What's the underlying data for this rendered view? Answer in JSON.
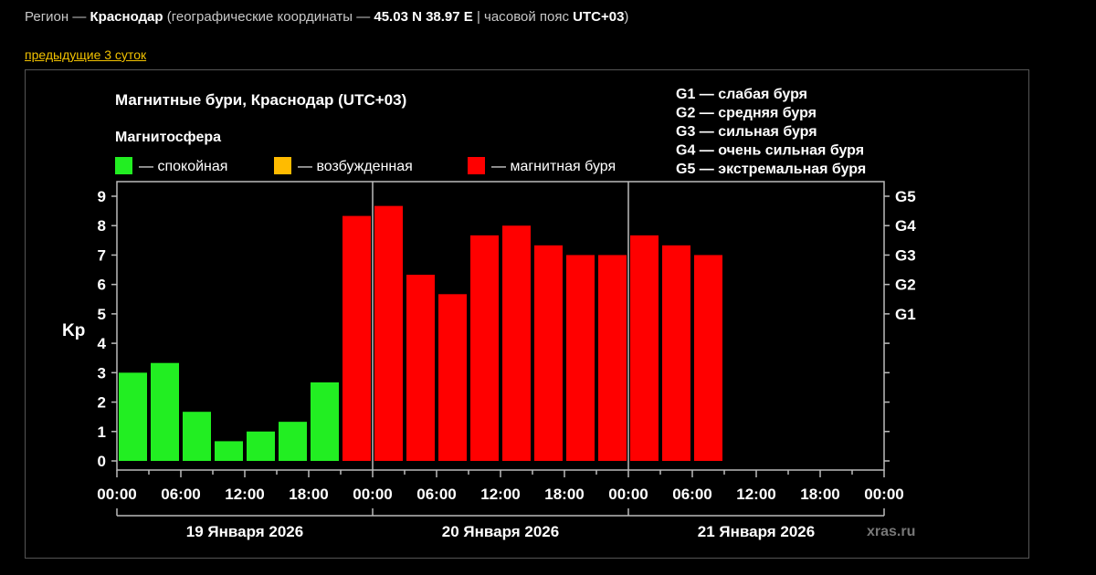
{
  "header": {
    "region_prefix": "Регион — ",
    "region_name": "Краснодар",
    "coords_prefix": " (географические координаты — ",
    "coords_value": "45.03 N 38.97 E",
    "tz_prefix": " | часовой пояс ",
    "tz_value": "UTC+03",
    "suffix": ")"
  },
  "prev_link": "предыдущие 3 суток",
  "chart_data": {
    "type": "bar",
    "title": "Магнитные бури, Краснодар (UTC+03)",
    "ylabel": "Kp",
    "ylim": [
      0,
      9
    ],
    "y_ticks": [
      0,
      1,
      2,
      3,
      4,
      5,
      6,
      7,
      8,
      9
    ],
    "right_axis_labels": [
      {
        "label": "G1",
        "kp": 5
      },
      {
        "label": "G2",
        "kp": 6
      },
      {
        "label": "G3",
        "kp": 7
      },
      {
        "label": "G4",
        "kp": 8
      },
      {
        "label": "G5",
        "kp": 9
      }
    ],
    "legend_title": "Магнитосфера",
    "legend": [
      {
        "label": "— спокойная",
        "color": "#22ee22"
      },
      {
        "label": "— возбужденная",
        "color": "#ffbb00"
      },
      {
        "label": "— магнитная буря",
        "color": "#ff0000"
      }
    ],
    "storm_scale": [
      "G1 — слабая буря",
      "G2 — средняя буря",
      "G3 — сильная буря",
      "G4 — очень сильная буря",
      "G5 — экстремальная буря"
    ],
    "x_tick_labels": [
      "00:00",
      "06:00",
      "12:00",
      "18:00",
      "00:00",
      "06:00",
      "12:00",
      "18:00",
      "00:00",
      "06:00",
      "12:00",
      "18:00",
      "00:00"
    ],
    "days": [
      "19 Января 2026",
      "20 Января 2026",
      "21 Января 2026"
    ],
    "interval_hours": 3,
    "total_intervals": 24,
    "values": [
      3.0,
      3.33,
      1.67,
      0.67,
      1.0,
      1.33,
      2.67,
      8.33,
      8.67,
      6.33,
      5.67,
      7.67,
      8.0,
      7.33,
      7.0,
      7.0,
      7.67,
      7.33,
      7.0
    ],
    "colors": [
      "#22ee22",
      "#22ee22",
      "#22ee22",
      "#22ee22",
      "#22ee22",
      "#22ee22",
      "#22ee22",
      "#ff0000",
      "#ff0000",
      "#ff0000",
      "#ff0000",
      "#ff0000",
      "#ff0000",
      "#ff0000",
      "#ff0000",
      "#ff0000",
      "#ff0000",
      "#ff0000",
      "#ff0000"
    ],
    "grid": false,
    "day_separators": true,
    "watermark": "xras.ru"
  }
}
